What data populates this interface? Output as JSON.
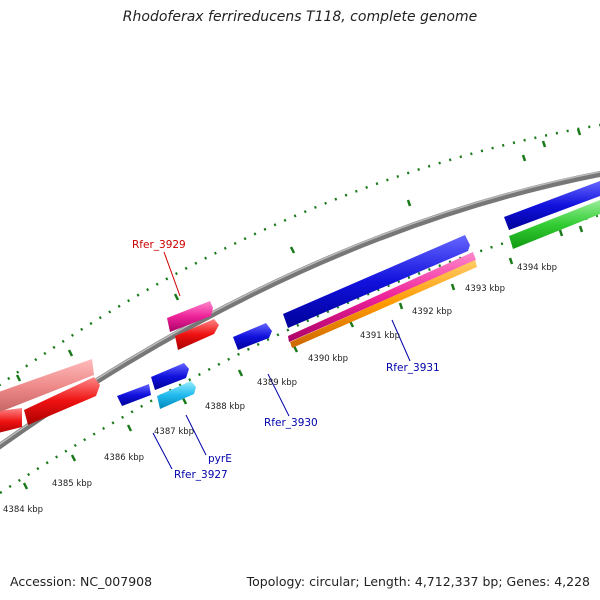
{
  "title": "Rhodoferax ferrireducens T118, complete genome",
  "footer": {
    "accession": "Accession: NC_007908",
    "topology": "Topology: circular; Length: 4,712,337 bp; Genes: 4,228"
  },
  "ticks": [
    "4384 kbp",
    "4385 kbp",
    "4386 kbp",
    "4387 kbp",
    "4388 kbp",
    "4389 kbp",
    "4390 kbp",
    "4391 kbp",
    "4392 kbp",
    "4393 kbp",
    "4394 kbp"
  ],
  "gene_labels": [
    {
      "name": "Rfer_3929",
      "color": "#cc0000"
    },
    {
      "name": "Rfer_3927",
      "color": "#0000aa"
    },
    {
      "name": "pyrE",
      "color": "#0000aa"
    },
    {
      "name": "Rfer_3930",
      "color": "#0000aa"
    },
    {
      "name": "Rfer_3931",
      "color": "#0000aa"
    }
  ],
  "colors": {
    "backbone": "#888888",
    "tick": "#1a7a1a",
    "red": "#ee1111",
    "pink_light": "#ee8888",
    "magenta": "#ee2299",
    "blue": "#1111dd",
    "cyan": "#22bbee",
    "orange": "#ff9900",
    "green": "#33cc33"
  }
}
